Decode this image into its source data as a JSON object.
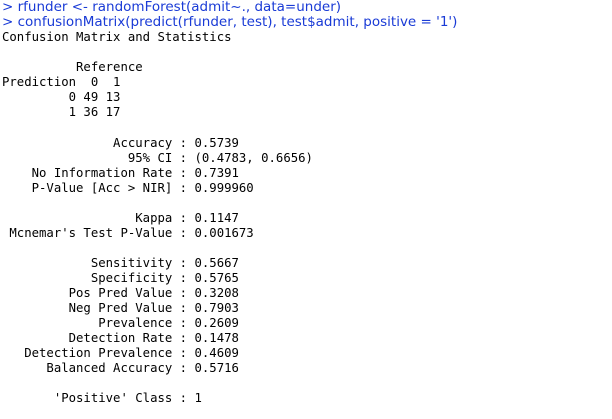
{
  "console": {
    "commands": [
      "> rfunder <- randomForest(admit~., data=under)",
      "> confusionMatrix(predict(rfunder, test), test$admit, positive = '1')"
    ],
    "heading": "Confusion Matrix and Statistics",
    "matrix": {
      "reference_header": "          Reference",
      "column_header": "Prediction  0  1",
      "row_0": "         0 49 13",
      "row_1": "         1 36 17"
    },
    "overall_stats": [
      "               Accuracy : 0.5739",
      "                 95% CI : (0.4783, 0.6656)",
      "    No Information Rate : 0.7391",
      "    P-Value [Acc > NIR] : 0.999960"
    ],
    "agreement_stats": [
      "                  Kappa : 0.1147",
      " Mcnemar's Test P-Value : 0.001673"
    ],
    "class_stats": [
      "            Sensitivity : 0.5667",
      "            Specificity : 0.5765",
      "         Pos Pred Value : 0.3208",
      "         Neg Pred Value : 0.7903",
      "             Prevalence : 0.2609",
      "         Detection Rate : 0.1478",
      "   Detection Prevalence : 0.4609",
      "      Balanced Accuracy : 0.5716"
    ],
    "positive_class": "       'Positive' Class : 1"
  }
}
